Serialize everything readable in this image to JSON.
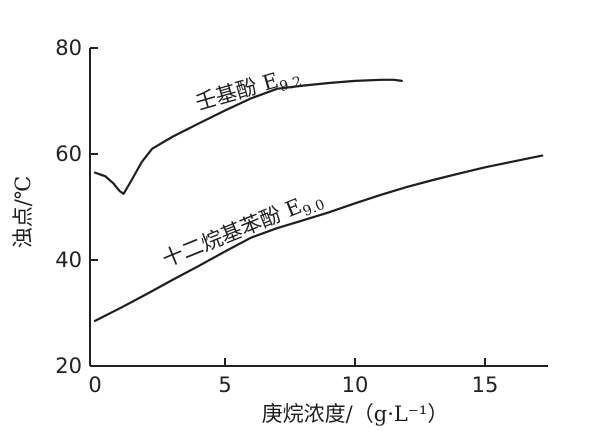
{
  "chart_data": {
    "type": "line",
    "xlabel": "庚烷浓度/（g·L⁻¹）",
    "ylabel": "浊点/℃",
    "xlim": [
      0,
      17.5
    ],
    "ylim": [
      20,
      80
    ],
    "xticks": [
      0,
      5,
      10,
      15
    ],
    "yticks": [
      20,
      40,
      60,
      80
    ],
    "grid": false,
    "series": [
      {
        "name": "壬基酚 E9.2",
        "label_base": "壬基酚 E",
        "label_sub": "9.2",
        "x": [
          0,
          0.4,
          0.7,
          0.95,
          1.1,
          1.4,
          1.8,
          2.2,
          3,
          4,
          5,
          6,
          7,
          8,
          9,
          10,
          11,
          11.5,
          11.8
        ],
        "y": [
          56.5,
          55.8,
          54.5,
          53,
          52.5,
          55,
          58.5,
          61,
          63.3,
          65.8,
          68.2,
          70.5,
          72.3,
          72.9,
          73.4,
          73.8,
          74,
          74,
          73.8
        ]
      },
      {
        "name": "十二烷基苯酚 E9.0",
        "label_base": "十二烷基苯酚 E",
        "label_sub": "9.0",
        "x": [
          0,
          1,
          2,
          3,
          4,
          5,
          6,
          7,
          8,
          9,
          10,
          11,
          12,
          13,
          14,
          15,
          16,
          17.2
        ],
        "y": [
          28.5,
          31,
          33.6,
          36.3,
          38.9,
          41.6,
          44.2,
          46,
          47.5,
          49,
          50.7,
          52.3,
          53.8,
          55.1,
          56.3,
          57.5,
          58.5,
          59.7
        ]
      }
    ]
  }
}
